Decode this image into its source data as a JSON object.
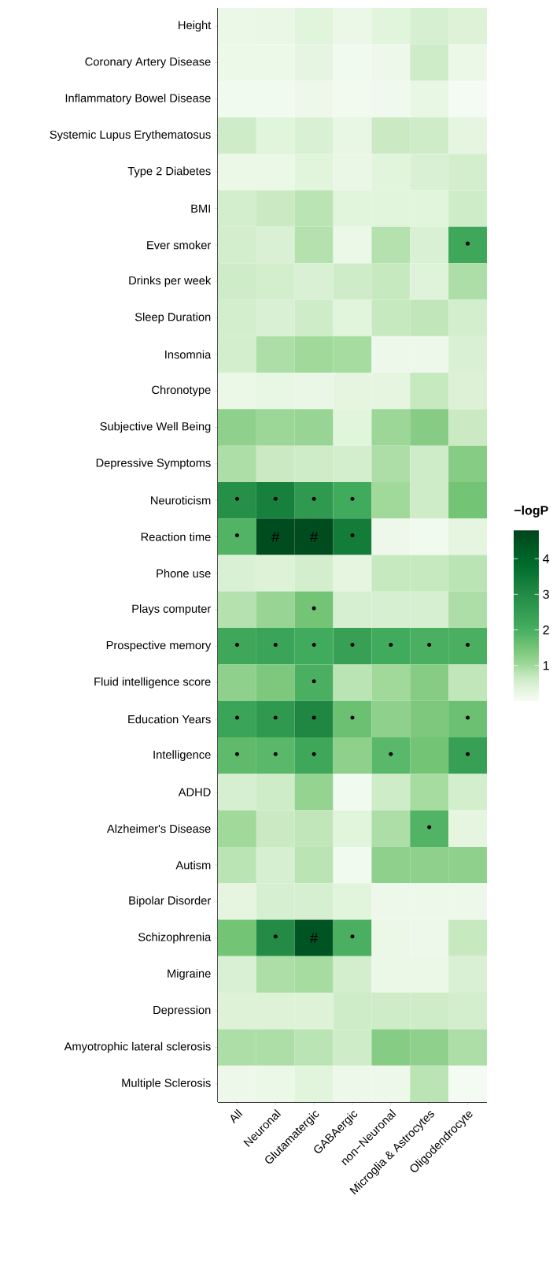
{
  "chart_data": {
    "type": "heatmap",
    "categories": [
      "All",
      "Neuronal",
      "Glutamatergic",
      "GABAergic",
      "non−Neuronal",
      "Microglia & Astrocytes",
      "Oligodendrocyte"
    ],
    "y_categories": [
      "Height",
      "Coronary Artery Disease",
      "Inflammatory Bowel Disease",
      "Systemic Lupus Erythematosus",
      "Type 2 Diabetes",
      "BMI",
      "Ever smoker",
      "Drinks per week",
      "Sleep Duration",
      "Insomnia",
      "Chronotype",
      "Subjective Well Being",
      "Depressive Symptoms",
      "Neuroticism",
      "Reaction time",
      "Phone use",
      "Plays computer",
      "Prospective memory",
      "Fluid intelligence score",
      "Education Years",
      "Intelligence",
      "ADHD",
      "Alzheimer's Disease",
      "Autism",
      "Bipolar Disorder",
      "Schizophrenia",
      "Migraine",
      "Depression",
      "Amyotrophic lateral sclerosis",
      "Multiple Sclerosis"
    ],
    "cells": [
      [
        0.2,
        0.22,
        0.35,
        0.2,
        0.35,
        0.5,
        0.4
      ],
      [
        0.18,
        0.18,
        0.28,
        0.1,
        0.15,
        0.6,
        0.2
      ],
      [
        0.1,
        0.1,
        0.15,
        0.08,
        0.12,
        0.25,
        0.05
      ],
      [
        0.6,
        0.35,
        0.45,
        0.25,
        0.65,
        0.6,
        0.3
      ],
      [
        0.2,
        0.2,
        0.35,
        0.22,
        0.35,
        0.45,
        0.55
      ],
      [
        0.55,
        0.65,
        0.8,
        0.35,
        0.35,
        0.35,
        0.6
      ],
      [
        0.55,
        0.45,
        0.85,
        0.2,
        0.85,
        0.45,
        2.2
      ],
      [
        0.6,
        0.55,
        0.45,
        0.6,
        0.7,
        0.38,
        0.9
      ],
      [
        0.55,
        0.45,
        0.6,
        0.35,
        0.7,
        0.75,
        0.55
      ],
      [
        0.55,
        0.9,
        1.0,
        0.95,
        0.15,
        0.15,
        0.45
      ],
      [
        0.2,
        0.25,
        0.22,
        0.3,
        0.3,
        0.7,
        0.42
      ],
      [
        1.2,
        1.05,
        1.1,
        0.35,
        1.05,
        1.3,
        0.65
      ],
      [
        0.9,
        0.65,
        0.6,
        0.55,
        0.9,
        0.6,
        1.3
      ],
      [
        2.9,
        3.3,
        2.6,
        2.1,
        1.0,
        0.6,
        1.5
      ],
      [
        1.9,
        4.6,
        4.6,
        3.4,
        0.15,
        0.1,
        0.3
      ],
      [
        0.45,
        0.4,
        0.55,
        0.3,
        0.7,
        0.7,
        0.8
      ],
      [
        0.85,
        1.1,
        1.5,
        0.5,
        0.5,
        0.5,
        0.9
      ],
      [
        2.2,
        2.3,
        2.1,
        2.4,
        2.1,
        2.0,
        2.0
      ],
      [
        1.2,
        1.4,
        2.0,
        0.8,
        1.0,
        1.3,
        0.75
      ],
      [
        2.3,
        2.6,
        3.1,
        1.6,
        1.2,
        1.4,
        1.6
      ],
      [
        1.75,
        1.8,
        2.2,
        1.2,
        1.8,
        1.5,
        2.4
      ],
      [
        0.5,
        0.6,
        1.15,
        0.1,
        0.6,
        0.95,
        0.55
      ],
      [
        1.0,
        0.65,
        0.75,
        0.35,
        0.9,
        1.9,
        0.3
      ],
      [
        0.8,
        0.5,
        0.8,
        0.1,
        1.2,
        1.2,
        1.2
      ],
      [
        0.3,
        0.5,
        0.5,
        0.35,
        0.15,
        0.15,
        0.15
      ],
      [
        1.5,
        3.0,
        4.4,
        2.0,
        0.2,
        0.15,
        0.7
      ],
      [
        0.45,
        0.9,
        0.95,
        0.55,
        0.2,
        0.2,
        0.45
      ],
      [
        0.4,
        0.4,
        0.4,
        0.6,
        0.6,
        0.6,
        0.55
      ],
      [
        0.9,
        0.9,
        0.8,
        0.6,
        1.3,
        1.2,
        0.9
      ],
      [
        0.15,
        0.2,
        0.35,
        0.15,
        0.15,
        0.8,
        0.05
      ]
    ],
    "cell_labels": [
      [
        null,
        null,
        null,
        null,
        null,
        null,
        null
      ],
      [
        null,
        null,
        null,
        null,
        null,
        null,
        null
      ],
      [
        null,
        null,
        null,
        null,
        null,
        null,
        null
      ],
      [
        null,
        null,
        null,
        null,
        null,
        null,
        null
      ],
      [
        null,
        null,
        null,
        null,
        null,
        null,
        null
      ],
      [
        null,
        null,
        null,
        null,
        null,
        null,
        null
      ],
      [
        null,
        null,
        null,
        null,
        null,
        null,
        "•"
      ],
      [
        null,
        null,
        null,
        null,
        null,
        null,
        null
      ],
      [
        null,
        null,
        null,
        null,
        null,
        null,
        null
      ],
      [
        null,
        null,
        null,
        null,
        null,
        null,
        null
      ],
      [
        null,
        null,
        null,
        null,
        null,
        null,
        null
      ],
      [
        null,
        null,
        null,
        null,
        null,
        null,
        null
      ],
      [
        null,
        null,
        null,
        null,
        null,
        null,
        null
      ],
      [
        "•",
        "•",
        "•",
        "•",
        null,
        null,
        null
      ],
      [
        "•",
        "#",
        "#",
        "•",
        null,
        null,
        null
      ],
      [
        null,
        null,
        null,
        null,
        null,
        null,
        null
      ],
      [
        null,
        null,
        "•",
        null,
        null,
        null,
        null
      ],
      [
        "•",
        "•",
        "•",
        "•",
        "•",
        "•",
        "•"
      ],
      [
        null,
        null,
        "•",
        null,
        null,
        null,
        null
      ],
      [
        "•",
        "•",
        "•",
        "•",
        null,
        null,
        "•"
      ],
      [
        "•",
        "•",
        "•",
        null,
        "•",
        null,
        "•"
      ],
      [
        null,
        null,
        null,
        null,
        null,
        null,
        null
      ],
      [
        null,
        null,
        null,
        null,
        null,
        "•",
        null
      ],
      [
        null,
        null,
        null,
        null,
        null,
        null,
        null
      ],
      [
        null,
        null,
        null,
        null,
        null,
        null,
        null
      ],
      [
        null,
        "•",
        "#",
        "•",
        null,
        null,
        null
      ],
      [
        null,
        null,
        null,
        null,
        null,
        null,
        null
      ],
      [
        null,
        null,
        null,
        null,
        null,
        null,
        null
      ],
      [
        null,
        null,
        null,
        null,
        null,
        null,
        null
      ],
      [
        null,
        null,
        null,
        null,
        null,
        null,
        null
      ]
    ],
    "clim": [
      0,
      4.8
    ],
    "cticks": [
      1,
      2,
      3,
      4
    ],
    "clabel": "−logP"
  }
}
